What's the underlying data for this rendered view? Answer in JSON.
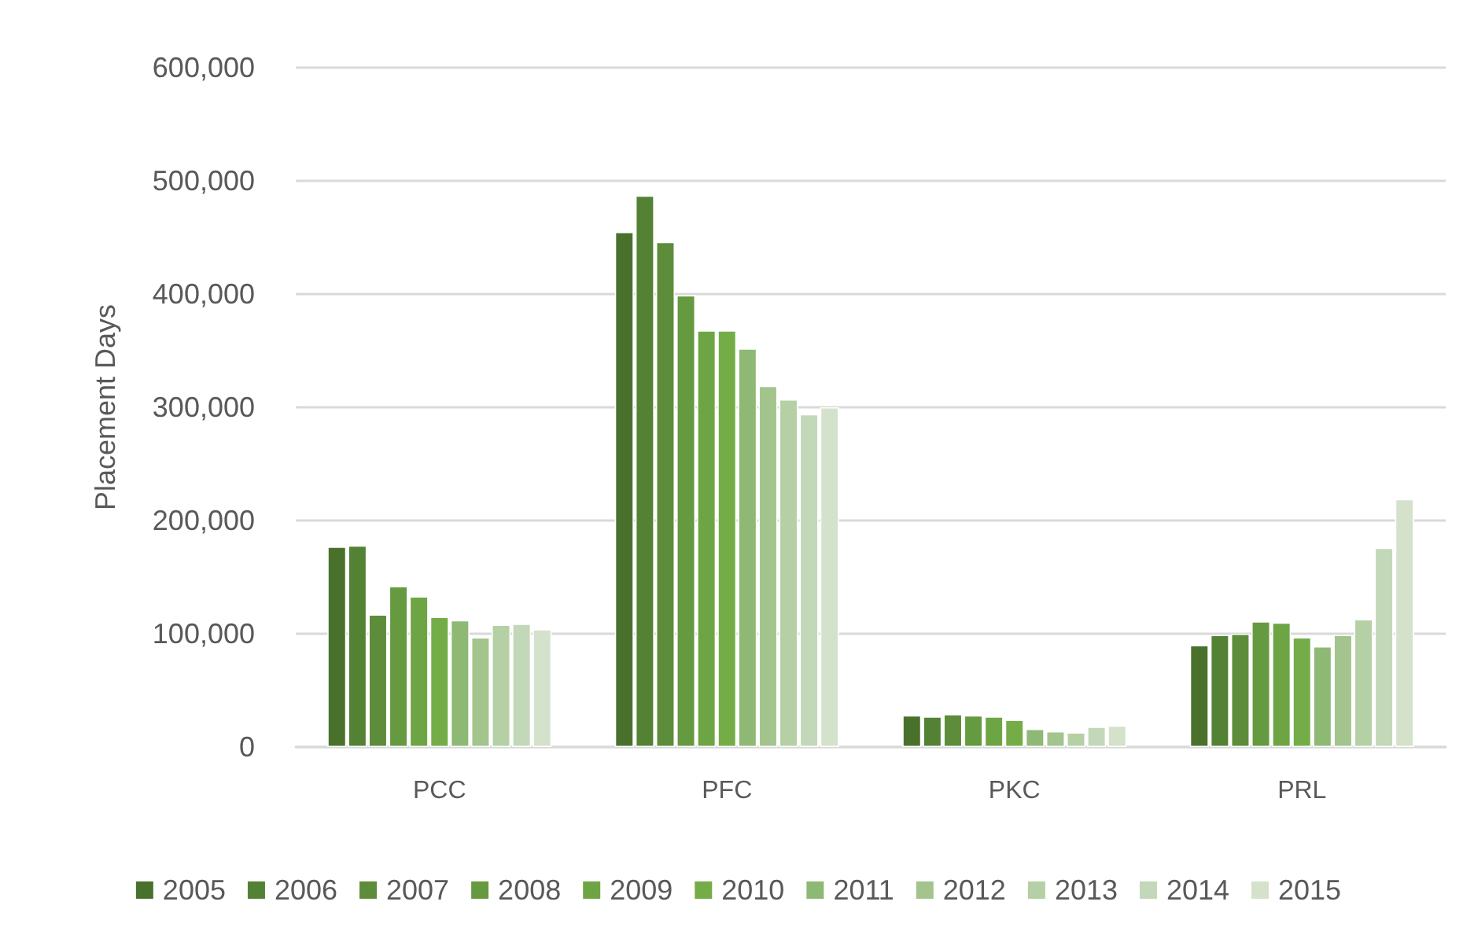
{
  "chart_data": {
    "type": "bar",
    "ylabel": "Placement Days",
    "categories": [
      "PCC",
      "PFC",
      "PKC",
      "PRL"
    ],
    "series": [
      {
        "name": "2005",
        "color": "#4a712c",
        "values": [
          177000,
          455000,
          28000,
          90000
        ]
      },
      {
        "name": "2006",
        "color": "#548235",
        "values": [
          178000,
          487000,
          27000,
          99000
        ]
      },
      {
        "name": "2007",
        "color": "#5d8c3a",
        "values": [
          117000,
          446000,
          29000,
          100000
        ]
      },
      {
        "name": "2008",
        "color": "#659a40",
        "values": [
          142000,
          399000,
          28000,
          111000
        ]
      },
      {
        "name": "2009",
        "color": "#6ea544",
        "values": [
          133000,
          368000,
          27000,
          110000
        ]
      },
      {
        "name": "2010",
        "color": "#74ad47",
        "values": [
          115000,
          368000,
          24000,
          97000
        ]
      },
      {
        "name": "2011",
        "color": "#8db974",
        "values": [
          112000,
          352000,
          16000,
          89000
        ]
      },
      {
        "name": "2012",
        "color": "#a3c48d",
        "values": [
          97000,
          319000,
          14000,
          99000
        ]
      },
      {
        "name": "2013",
        "color": "#b5d0a4",
        "values": [
          108000,
          307000,
          13000,
          113000
        ]
      },
      {
        "name": "2014",
        "color": "#c3d8b8",
        "values": [
          109000,
          294000,
          18000,
          176000
        ]
      },
      {
        "name": "2015",
        "color": "#d4e2cb",
        "values": [
          104000,
          300000,
          19000,
          219000
        ]
      }
    ],
    "ylim": [
      0,
      600000
    ],
    "yticks": [
      0,
      {
        "value": 100000,
        "label": "100,000"
      },
      {
        "value": 200000,
        "label": "200,000"
      },
      {
        "value": 300000,
        "label": "300,000"
      },
      {
        "value": 400000,
        "label": "400,000"
      },
      {
        "value": 500000,
        "label": "500,000"
      },
      {
        "value": 600000,
        "label": "600,000"
      }
    ],
    "grid": "y",
    "legend": "bottom"
  }
}
